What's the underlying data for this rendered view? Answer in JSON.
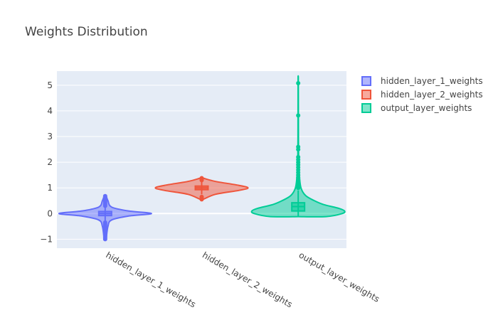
{
  "chart_data": {
    "type": "violin",
    "title": "Weights Distribution",
    "xlabel": "",
    "ylabel": "",
    "ylim": [
      -1.35,
      5.55
    ],
    "yticks": [
      -1,
      0,
      1,
      2,
      3,
      4,
      5
    ],
    "grid": true,
    "legend": "top-right",
    "categories": [
      "hidden_layer_1_weights",
      "hidden_layer_2_weights",
      "output_layer_weights"
    ],
    "series": [
      {
        "name": "hidden_layer_1_weights",
        "color": "#636EFA",
        "min": -1.0,
        "q1": -0.08,
        "median": 0.0,
        "q3": 0.08,
        "max": 0.68,
        "fence_low": -0.3,
        "fence_high": 0.25,
        "density": [
          [
            -1.0,
            0.02
          ],
          [
            -0.5,
            0.06
          ],
          [
            -0.25,
            0.14
          ],
          [
            -0.1,
            0.5
          ],
          [
            0.0,
            1.0
          ],
          [
            0.1,
            0.5
          ],
          [
            0.25,
            0.14
          ],
          [
            0.5,
            0.06
          ],
          [
            0.68,
            0.02
          ]
        ],
        "outliers": [
          -1.0,
          -0.95,
          -0.9,
          -0.85,
          -0.8,
          -0.75,
          -0.7,
          -0.65,
          -0.6,
          -0.55,
          -0.5,
          -0.45,
          -0.4,
          -0.35,
          0.3,
          0.35,
          0.4,
          0.45,
          0.5,
          0.55,
          0.6,
          0.65,
          0.68
        ]
      },
      {
        "name": "hidden_layer_2_weights",
        "color": "#EF553B",
        "min": 0.55,
        "q1": 0.93,
        "median": 1.0,
        "q3": 1.07,
        "max": 1.38,
        "fence_low": 0.75,
        "fence_high": 1.25,
        "density": [
          [
            0.55,
            0.03
          ],
          [
            0.75,
            0.3
          ],
          [
            0.9,
            0.8
          ],
          [
            1.0,
            1.0
          ],
          [
            1.1,
            0.8
          ],
          [
            1.25,
            0.3
          ],
          [
            1.38,
            0.03
          ]
        ],
        "outliers": [
          0.55,
          0.6,
          0.65,
          1.3,
          1.35,
          1.38
        ]
      },
      {
        "name": "output_layer_weights",
        "color": "#00CC96",
        "min": -0.1,
        "q1": 0.1,
        "median": 0.27,
        "q3": 0.42,
        "max": 5.1,
        "fence_low": -0.1,
        "fence_high": 0.9,
        "density": [
          [
            -0.12,
            0.6
          ],
          [
            0.0,
            0.95
          ],
          [
            0.1,
            1.0
          ],
          [
            0.2,
            0.88
          ],
          [
            0.35,
            0.55
          ],
          [
            0.5,
            0.35
          ],
          [
            0.7,
            0.16
          ],
          [
            1.0,
            0.06
          ],
          [
            1.5,
            0.025
          ],
          [
            2.2,
            0.01
          ],
          [
            3.0,
            0.005
          ],
          [
            5.2,
            0.003
          ]
        ],
        "outliers": [
          1.0,
          1.1,
          1.2,
          1.3,
          1.4,
          1.5,
          1.6,
          1.7,
          1.8,
          1.9,
          2.0,
          2.1,
          2.2,
          2.5,
          2.6,
          3.82,
          5.08
        ]
      }
    ]
  }
}
